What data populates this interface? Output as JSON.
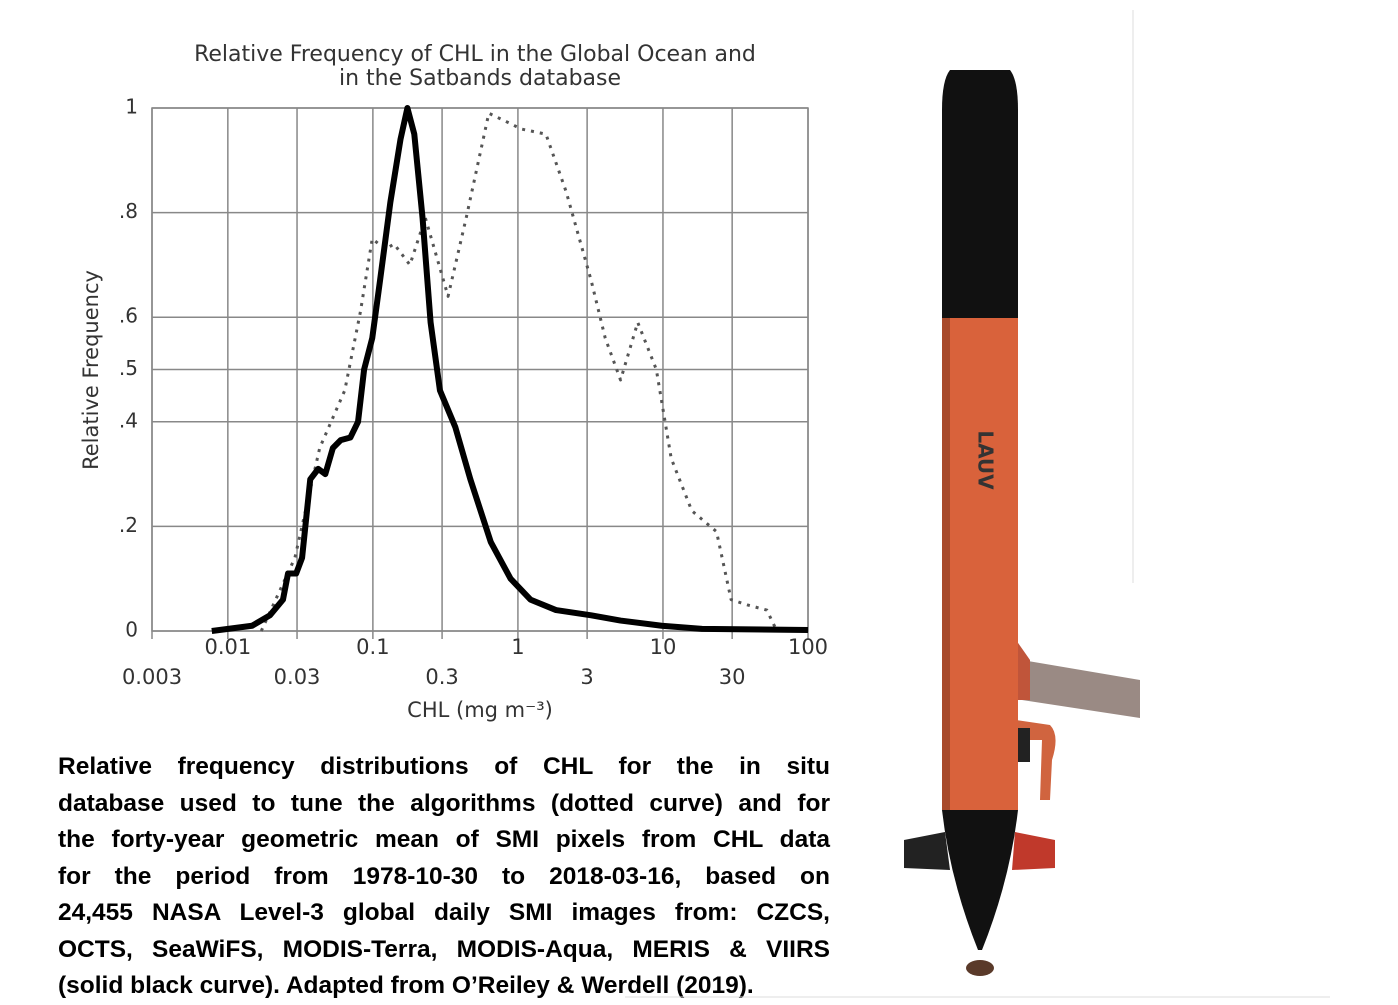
{
  "chart_data": {
    "type": "line",
    "title": [
      "Relative Frequency of CHL in the Global Ocean and",
      "in the Satbands database"
    ],
    "x_label": "CHL (mg m⁻³)",
    "y_label": "Relative Frequency",
    "xscale": "log",
    "xlim": [
      0.003,
      100
    ],
    "xticks": [
      0.003,
      0.01,
      0.03,
      0.1,
      0.3,
      1,
      3,
      10,
      30,
      100
    ],
    "ylim": [
      0,
      1
    ],
    "yticks": [
      0,
      {
        "value": 0.2,
        "label": ".2"
      },
      {
        "value": 0.4,
        "label": ".4"
      },
      {
        "value": 0.5,
        "label": ".5"
      },
      {
        "value": 0.6,
        "label": ".6"
      },
      {
        "value": 0.8,
        "label": ".8"
      },
      1
    ],
    "grid": true,
    "series": [
      {
        "color": "#000000",
        "style": "solid",
        "width": 6,
        "x": [
          0.00775,
          0.0147,
          0.0195,
          0.024,
          0.026,
          0.0296,
          0.0325,
          0.037,
          0.042,
          0.047,
          0.053,
          0.06,
          0.07,
          0.079,
          0.087,
          0.099,
          0.112,
          0.132,
          0.155,
          0.173,
          0.193,
          0.22,
          0.25,
          0.29,
          0.37,
          0.47,
          0.65,
          0.89,
          1.22,
          1.83,
          3.2,
          5.1,
          9.8,
          18.6,
          100
        ],
        "values": [
          0,
          0.01,
          0.03,
          0.06,
          0.11,
          0.11,
          0.14,
          0.29,
          0.31,
          0.3,
          0.35,
          0.365,
          0.37,
          0.4,
          0.5,
          0.56,
          0.67,
          0.82,
          0.94,
          1,
          0.95,
          0.79,
          0.59,
          0.46,
          0.39,
          0.29,
          0.17,
          0.1,
          0.06,
          0.04,
          0.03,
          0.02,
          0.01,
          0.004,
          0.002
        ]
      },
      {
        "color": "#555555",
        "style": "dotted",
        "width": 3,
        "x": [
          0.017,
          0.029,
          0.043,
          0.064,
          0.082,
          0.099,
          0.122,
          0.14,
          0.18,
          0.23,
          0.33,
          0.44,
          0.63,
          0.89,
          1.05,
          1.56,
          2.15,
          3.2,
          4,
          5.1,
          6.7,
          9,
          11.4,
          15.8,
          23.4,
          29.5,
          38,
          52,
          61
        ],
        "values": [
          0,
          0.14,
          0.35,
          0.46,
          0.61,
          0.75,
          0.73,
          0.74,
          0.7,
          0.79,
          0.64,
          0.79,
          0.99,
          0.97,
          0.96,
          0.95,
          0.84,
          0.67,
          0.56,
          0.48,
          0.59,
          0.5,
          0.33,
          0.23,
          0.19,
          0.06,
          0.05,
          0.04,
          0
        ]
      }
    ]
  },
  "caption": [
    "Relative frequency distributions of CHL for the in situ",
    "database used to tune the algorithms (dotted curve) and for",
    "the forty-year geometric mean of SMI pixels from CHL data",
    "for the period from 1978-10-30 to 2018-03-16, based on",
    "24,455 NASA Level-3 global daily SMI images from: CZCS,",
    "OCTS, SeaWiFS, MODIS-Terra, MODIS-Aqua, MERIS & VIIRS",
    "(solid black curve). Adapted from O’Reiley & Werdell (2019)."
  ],
  "image": {
    "logo": "LAUV"
  }
}
